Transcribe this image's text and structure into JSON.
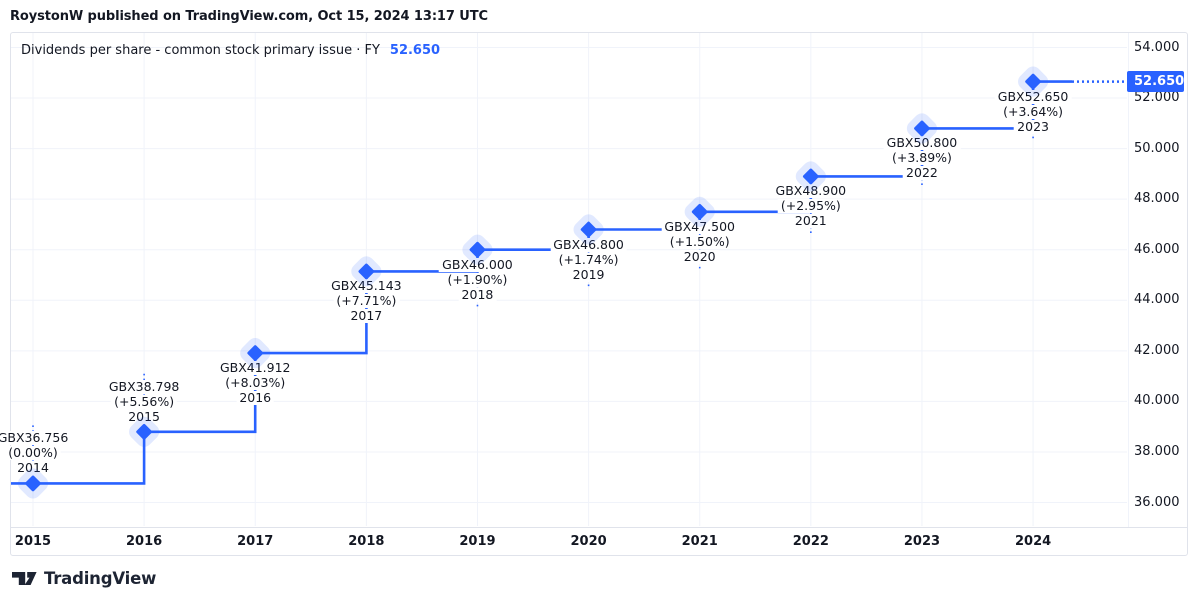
{
  "header": {
    "byline": "RoystonW published on TradingView.com, Oct 15, 2024 13:17 UTC"
  },
  "legend": {
    "title": "Dividends per share - common stock primary issue · FY",
    "value": "52.650"
  },
  "footer": {
    "brand": "TradingView",
    "logo_icon": "tradingview-logo"
  },
  "colors": {
    "accent": "#2962ff",
    "halo": "rgba(41,98,255,0.14)",
    "text": "#131722",
    "grid": "#f0f3fa",
    "border": "#e0e3eb",
    "badge_bg": "#2962ff",
    "badge_text": "#ffffff",
    "background": "#ffffff"
  },
  "chart_data": {
    "type": "line",
    "step_style": "step-after",
    "title": "Dividends per share - common stock primary issue · FY",
    "unit": "GBX",
    "grid": true,
    "legend_position": "top-left",
    "x_axis_labels": [
      "2015",
      "2016",
      "2017",
      "2018",
      "2019",
      "2020",
      "2021",
      "2022",
      "2023",
      "2024"
    ],
    "y_ticks": [
      54,
      52,
      50,
      48,
      46,
      44,
      42,
      40,
      38,
      36
    ],
    "y_tick_labels": [
      "54.000",
      "52.000",
      "50.000",
      "48.000",
      "46.000",
      "44.000",
      "42.000",
      "40.000",
      "38.000",
      "36.000"
    ],
    "ylim": [
      35.2,
      54.6
    ],
    "last_price_badge": "52.650",
    "points": [
      {
        "x_year": "2015",
        "fiscal_year": "2014",
        "value": 36.756,
        "value_label": "GBX36.756",
        "change_label": "(0.00%)",
        "label_side": "above"
      },
      {
        "x_year": "2016",
        "fiscal_year": "2015",
        "value": 38.798,
        "value_label": "GBX38.798",
        "change_label": "(+5.56%)",
        "label_side": "above"
      },
      {
        "x_year": "2017",
        "fiscal_year": "2016",
        "value": 41.912,
        "value_label": "GBX41.912",
        "change_label": "(+8.03%)",
        "label_side": "below"
      },
      {
        "x_year": "2018",
        "fiscal_year": "2017",
        "value": 45.143,
        "value_label": "GBX45.143",
        "change_label": "(+7.71%)",
        "label_side": "below"
      },
      {
        "x_year": "2019",
        "fiscal_year": "2018",
        "value": 46.0,
        "value_label": "GBX46.000",
        "change_label": "(+1.90%)",
        "label_side": "below"
      },
      {
        "x_year": "2020",
        "fiscal_year": "2019",
        "value": 46.8,
        "value_label": "GBX46.800",
        "change_label": "(+1.74%)",
        "label_side": "below"
      },
      {
        "x_year": "2021",
        "fiscal_year": "2020",
        "value": 47.5,
        "value_label": "GBX47.500",
        "change_label": "(+1.50%)",
        "label_side": "below"
      },
      {
        "x_year": "2022",
        "fiscal_year": "2021",
        "value": 48.9,
        "value_label": "GBX48.900",
        "change_label": "(+2.95%)",
        "label_side": "below"
      },
      {
        "x_year": "2023",
        "fiscal_year": "2022",
        "value": 50.8,
        "value_label": "GBX50.800",
        "change_label": "(+3.89%)",
        "label_side": "below"
      },
      {
        "x_year": "2024",
        "fiscal_year": "2023",
        "value": 52.65,
        "value_label": "GBX52.650",
        "change_label": "(+3.64%)",
        "label_side": "below"
      }
    ]
  }
}
